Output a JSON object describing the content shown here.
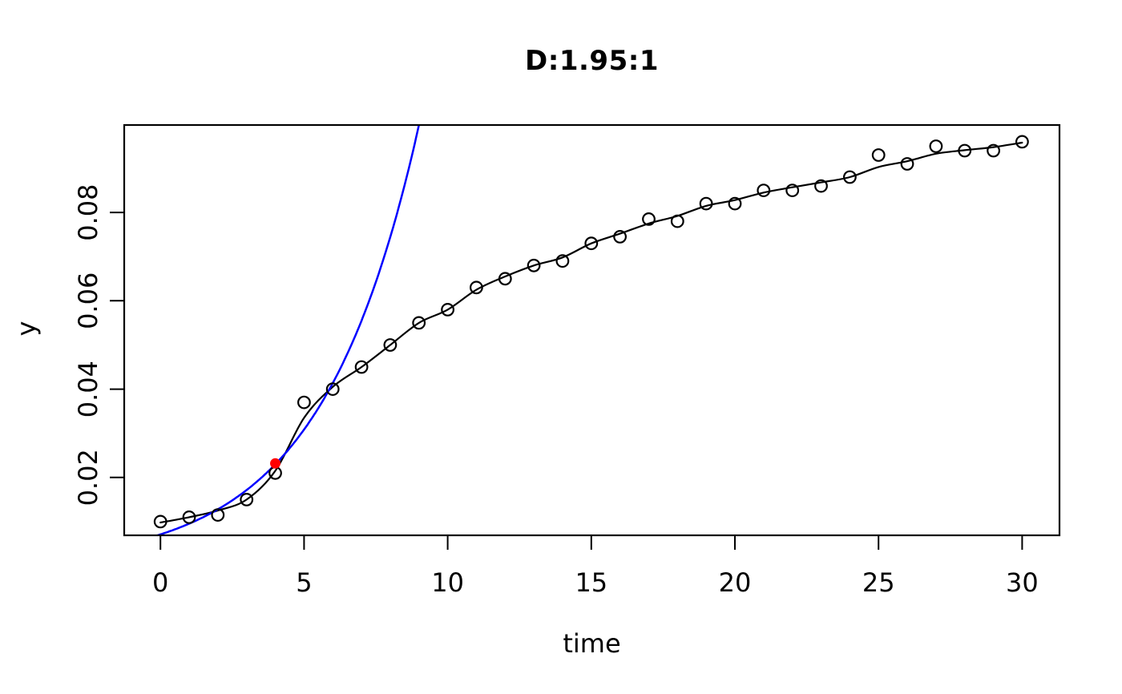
{
  "chart_data": {
    "type": "scatter",
    "title": "D:1.95:1",
    "xlabel": "time",
    "ylabel": "y",
    "x_ticks": [
      0,
      5,
      10,
      15,
      20,
      25,
      30
    ],
    "y_ticks": [
      "0.02",
      "0.04",
      "0.06",
      "0.08"
    ],
    "xlim": [
      -1.26,
      31.3
    ],
    "ylim": [
      0.0069,
      0.0998
    ],
    "grid": false,
    "legend": null,
    "observations": {
      "x": [
        0,
        1,
        2,
        3,
        4,
        5,
        6,
        7,
        8,
        9,
        10,
        11,
        12,
        13,
        14,
        15,
        16,
        17,
        18,
        19,
        20,
        21,
        22,
        23,
        24,
        25,
        26,
        27,
        28,
        29,
        30
      ],
      "y": [
        0.01,
        0.011,
        0.0115,
        0.015,
        0.021,
        0.037,
        0.04,
        0.045,
        0.05,
        0.055,
        0.058,
        0.063,
        0.065,
        0.068,
        0.069,
        0.073,
        0.0745,
        0.0785,
        0.078,
        0.082,
        0.082,
        0.085,
        0.085,
        0.086,
        0.088,
        0.093,
        0.091,
        0.095,
        0.094,
        0.094,
        0.096
      ],
      "marker": "open-circle",
      "color": "#000000"
    },
    "fit_curve": {
      "color": "#000000",
      "x": [
        0,
        1,
        2,
        3,
        4,
        5,
        6,
        7,
        8,
        9,
        10,
        11,
        12,
        13,
        14,
        15,
        16,
        17,
        18,
        19,
        20,
        21,
        22,
        23,
        24,
        25,
        26,
        27,
        28,
        29,
        30
      ],
      "y": [
        0.0098,
        0.011,
        0.0125,
        0.015,
        0.0215,
        0.0335,
        0.0405,
        0.045,
        0.05,
        0.055,
        0.058,
        0.0625,
        0.0655,
        0.068,
        0.0698,
        0.073,
        0.0752,
        0.0775,
        0.0792,
        0.0815,
        0.0828,
        0.0845,
        0.0857,
        0.0868,
        0.088,
        0.0903,
        0.0916,
        0.0933,
        0.0941,
        0.0948,
        0.0958
      ]
    },
    "exponential_curve": {
      "color": "#0000ff",
      "y0": 0.00711,
      "rate": 0.2935,
      "t_start": -0.5,
      "t_end": 9.2
    },
    "highlight_point": {
      "x": 4,
      "y": 0.023,
      "color": "#ff0000"
    }
  }
}
